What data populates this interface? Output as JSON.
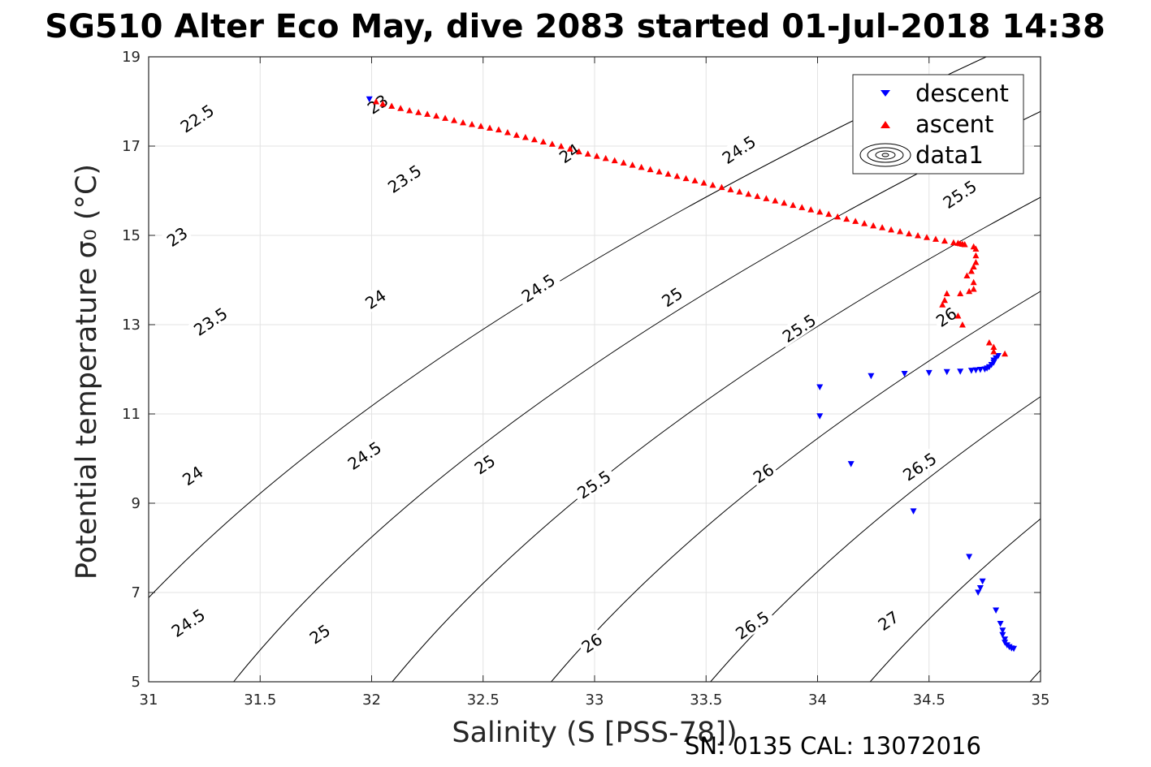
{
  "chart_data": {
    "type": "scatter",
    "title": "SG510 Alter Eco May, dive 2083 started 01-Jul-2018 14:38",
    "xlabel": "Salinity (S [PSS-78])",
    "ylabel": "Potential temperature σ₀ (°C)",
    "xlim": [
      31,
      35
    ],
    "ylim": [
      5,
      19
    ],
    "xticks": [
      "31",
      "31.5",
      "32",
      "32.5",
      "33",
      "33.5",
      "34",
      "34.5",
      "35"
    ],
    "yticks": [
      "5",
      "7",
      "9",
      "11",
      "13",
      "15",
      "17",
      "19"
    ],
    "grid": true,
    "legend_position": "top-right",
    "legend": [
      "descent",
      "ascent",
      "data1"
    ],
    "series": [
      {
        "name": "descent",
        "marker": "triangle-down",
        "color": "#0000ff",
        "points": [
          [
            31.99,
            18.05
          ],
          [
            34.01,
            11.6
          ],
          [
            34.01,
            10.95
          ],
          [
            34.15,
            9.88
          ],
          [
            34.24,
            11.85
          ],
          [
            34.39,
            11.9
          ],
          [
            34.43,
            8.82
          ],
          [
            34.5,
            11.92
          ],
          [
            34.58,
            11.94
          ],
          [
            34.64,
            11.95
          ],
          [
            34.68,
            7.8
          ],
          [
            34.69,
            11.97
          ],
          [
            34.71,
            11.98
          ],
          [
            34.72,
            7.0
          ],
          [
            34.73,
            7.1
          ],
          [
            34.73,
            11.99
          ],
          [
            34.74,
            7.25
          ],
          [
            34.75,
            12.0
          ],
          [
            34.76,
            12.02
          ],
          [
            34.77,
            12.05
          ],
          [
            34.78,
            12.1
          ],
          [
            34.79,
            12.15
          ],
          [
            34.79,
            12.2
          ],
          [
            34.8,
            12.25
          ],
          [
            34.8,
            6.6
          ],
          [
            34.81,
            12.3
          ],
          [
            34.82,
            6.3
          ],
          [
            34.83,
            6.15
          ],
          [
            34.83,
            6.05
          ],
          [
            34.84,
            5.95
          ],
          [
            34.84,
            5.88
          ],
          [
            34.85,
            5.82
          ],
          [
            34.86,
            5.78
          ],
          [
            34.87,
            5.75
          ],
          [
            34.88,
            5.74
          ]
        ]
      },
      {
        "name": "ascent",
        "marker": "triangle-up",
        "color": "#ff0000",
        "points": [
          [
            32.02,
            18.0
          ],
          [
            32.05,
            17.95
          ],
          [
            32.09,
            17.9
          ],
          [
            32.13,
            17.85
          ],
          [
            32.17,
            17.8
          ],
          [
            32.21,
            17.76
          ],
          [
            32.25,
            17.72
          ],
          [
            32.29,
            17.68
          ],
          [
            32.33,
            17.63
          ],
          [
            32.37,
            17.58
          ],
          [
            32.41,
            17.53
          ],
          [
            32.45,
            17.49
          ],
          [
            32.49,
            17.45
          ],
          [
            32.53,
            17.41
          ],
          [
            32.57,
            17.37
          ],
          [
            32.61,
            17.31
          ],
          [
            32.65,
            17.25
          ],
          [
            32.69,
            17.2
          ],
          [
            32.73,
            17.15
          ],
          [
            32.77,
            17.1
          ],
          [
            32.81,
            17.05
          ],
          [
            32.85,
            17.0
          ],
          [
            32.89,
            16.94
          ],
          [
            32.93,
            16.88
          ],
          [
            32.97,
            16.83
          ],
          [
            33.01,
            16.78
          ],
          [
            33.05,
            16.73
          ],
          [
            33.09,
            16.68
          ],
          [
            33.13,
            16.63
          ],
          [
            33.17,
            16.58
          ],
          [
            33.21,
            16.53
          ],
          [
            33.25,
            16.48
          ],
          [
            33.29,
            16.43
          ],
          [
            33.33,
            16.38
          ],
          [
            33.37,
            16.33
          ],
          [
            33.41,
            16.28
          ],
          [
            33.45,
            16.23
          ],
          [
            33.49,
            16.18
          ],
          [
            33.53,
            16.13
          ],
          [
            33.57,
            16.08
          ],
          [
            33.61,
            16.03
          ],
          [
            33.65,
            15.98
          ],
          [
            33.69,
            15.93
          ],
          [
            33.73,
            15.88
          ],
          [
            33.77,
            15.83
          ],
          [
            33.81,
            15.78
          ],
          [
            33.85,
            15.73
          ],
          [
            33.89,
            15.68
          ],
          [
            33.93,
            15.63
          ],
          [
            33.97,
            15.58
          ],
          [
            34.01,
            15.53
          ],
          [
            34.05,
            15.48
          ],
          [
            34.09,
            15.42
          ],
          [
            34.13,
            15.37
          ],
          [
            34.17,
            15.32
          ],
          [
            34.21,
            15.27
          ],
          [
            34.25,
            15.22
          ],
          [
            34.29,
            15.18
          ],
          [
            34.33,
            15.13
          ],
          [
            34.37,
            15.09
          ],
          [
            34.41,
            15.04
          ],
          [
            34.45,
            15.0
          ],
          [
            34.49,
            14.96
          ],
          [
            34.53,
            14.92
          ],
          [
            34.57,
            14.88
          ],
          [
            34.61,
            14.84
          ],
          [
            34.63,
            14.83
          ],
          [
            34.64,
            14.82
          ],
          [
            34.65,
            14.81
          ],
          [
            34.66,
            14.8
          ],
          [
            34.7,
            14.75
          ],
          [
            34.71,
            14.7
          ],
          [
            34.71,
            14.55
          ],
          [
            34.71,
            14.4
          ],
          [
            34.7,
            14.3
          ],
          [
            34.69,
            14.2
          ],
          [
            34.67,
            14.1
          ],
          [
            34.7,
            13.95
          ],
          [
            34.7,
            13.8
          ],
          [
            34.68,
            13.75
          ],
          [
            34.64,
            13.7
          ],
          [
            34.58,
            13.7
          ],
          [
            34.57,
            13.55
          ],
          [
            34.56,
            13.45
          ],
          [
            34.63,
            13.2
          ],
          [
            34.65,
            13.0
          ],
          [
            34.77,
            12.6
          ],
          [
            34.79,
            12.5
          ],
          [
            34.79,
            12.4
          ],
          [
            34.84,
            12.35
          ]
        ]
      }
    ],
    "contours": [
      {
        "level": "22.5",
        "label": "22.5"
      },
      {
        "level": "23",
        "label": "23"
      },
      {
        "level": "23.5",
        "label": "23.5"
      },
      {
        "level": "24",
        "label": "24"
      },
      {
        "level": "24.5",
        "label": "24.5"
      },
      {
        "level": "25",
        "label": "25"
      },
      {
        "level": "25.5",
        "label": "25.5"
      },
      {
        "level": "26",
        "label": "26"
      },
      {
        "level": "26.5",
        "label": "26.5"
      },
      {
        "level": "27",
        "label": "27"
      }
    ],
    "contour_label_positions": [
      {
        "text": "22.5",
        "x": 31.22,
        "y": 17.6
      },
      {
        "text": "23",
        "x": 32.03,
        "y": 17.92
      },
      {
        "text": "23",
        "x": 31.13,
        "y": 14.95
      },
      {
        "text": "23.5",
        "x": 32.15,
        "y": 16.25
      },
      {
        "text": "23.5",
        "x": 31.28,
        "y": 13.05
      },
      {
        "text": "24",
        "x": 32.89,
        "y": 16.82
      },
      {
        "text": "24",
        "x": 32.02,
        "y": 13.55
      },
      {
        "text": "24",
        "x": 31.2,
        "y": 9.6
      },
      {
        "text": "24.5",
        "x": 33.65,
        "y": 16.9
      },
      {
        "text": "24.5",
        "x": 32.75,
        "y": 13.8
      },
      {
        "text": "24.5",
        "x": 31.97,
        "y": 10.05
      },
      {
        "text": "24.5",
        "x": 31.18,
        "y": 6.3
      },
      {
        "text": "25",
        "x": 33.35,
        "y": 13.6
      },
      {
        "text": "25",
        "x": 32.51,
        "y": 9.85
      },
      {
        "text": "25",
        "x": 31.77,
        "y": 6.05
      },
      {
        "text": "25.5",
        "x": 34.64,
        "y": 15.9
      },
      {
        "text": "25.5",
        "x": 33.92,
        "y": 12.9
      },
      {
        "text": "25.5",
        "x": 33.0,
        "y": 9.4
      },
      {
        "text": "26",
        "x": 34.58,
        "y": 13.15
      },
      {
        "text": "26",
        "x": 33.76,
        "y": 9.65
      },
      {
        "text": "26",
        "x": 32.99,
        "y": 5.85
      },
      {
        "text": "26.5",
        "x": 34.46,
        "y": 9.8
      },
      {
        "text": "26.5",
        "x": 33.71,
        "y": 6.25
      },
      {
        "text": "27",
        "x": 34.32,
        "y": 6.35
      }
    ],
    "footnote": "SN: 0135  CAL: 13072016"
  }
}
